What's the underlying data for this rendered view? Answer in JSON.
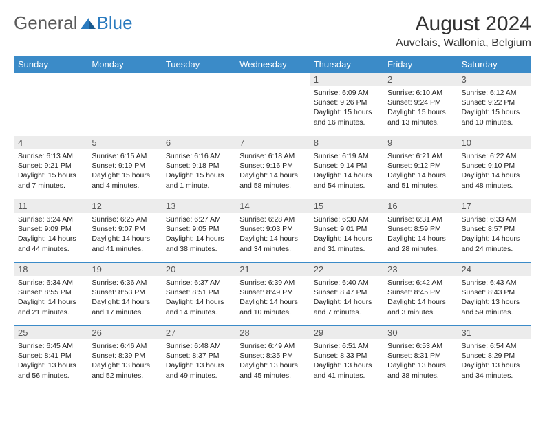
{
  "logo": {
    "text1": "General",
    "text2": "Blue"
  },
  "title": "August 2024",
  "location": "Auvelais, Wallonia, Belgium",
  "colors": {
    "header_bg": "#3b8bc8",
    "header_text": "#ffffff",
    "daynum_bg": "#ececec",
    "brand_gray": "#5a5a5a",
    "brand_blue": "#2b7bbf"
  },
  "weekdays": [
    "Sunday",
    "Monday",
    "Tuesday",
    "Wednesday",
    "Thursday",
    "Friday",
    "Saturday"
  ],
  "weeks": [
    [
      {
        "n": "",
        "sr": "",
        "ss": "",
        "dl": ""
      },
      {
        "n": "",
        "sr": "",
        "ss": "",
        "dl": ""
      },
      {
        "n": "",
        "sr": "",
        "ss": "",
        "dl": ""
      },
      {
        "n": "",
        "sr": "",
        "ss": "",
        "dl": ""
      },
      {
        "n": "1",
        "sr": "Sunrise: 6:09 AM",
        "ss": "Sunset: 9:26 PM",
        "dl": "Daylight: 15 hours and 16 minutes."
      },
      {
        "n": "2",
        "sr": "Sunrise: 6:10 AM",
        "ss": "Sunset: 9:24 PM",
        "dl": "Daylight: 15 hours and 13 minutes."
      },
      {
        "n": "3",
        "sr": "Sunrise: 6:12 AM",
        "ss": "Sunset: 9:22 PM",
        "dl": "Daylight: 15 hours and 10 minutes."
      }
    ],
    [
      {
        "n": "4",
        "sr": "Sunrise: 6:13 AM",
        "ss": "Sunset: 9:21 PM",
        "dl": "Daylight: 15 hours and 7 minutes."
      },
      {
        "n": "5",
        "sr": "Sunrise: 6:15 AM",
        "ss": "Sunset: 9:19 PM",
        "dl": "Daylight: 15 hours and 4 minutes."
      },
      {
        "n": "6",
        "sr": "Sunrise: 6:16 AM",
        "ss": "Sunset: 9:18 PM",
        "dl": "Daylight: 15 hours and 1 minute."
      },
      {
        "n": "7",
        "sr": "Sunrise: 6:18 AM",
        "ss": "Sunset: 9:16 PM",
        "dl": "Daylight: 14 hours and 58 minutes."
      },
      {
        "n": "8",
        "sr": "Sunrise: 6:19 AM",
        "ss": "Sunset: 9:14 PM",
        "dl": "Daylight: 14 hours and 54 minutes."
      },
      {
        "n": "9",
        "sr": "Sunrise: 6:21 AM",
        "ss": "Sunset: 9:12 PM",
        "dl": "Daylight: 14 hours and 51 minutes."
      },
      {
        "n": "10",
        "sr": "Sunrise: 6:22 AM",
        "ss": "Sunset: 9:10 PM",
        "dl": "Daylight: 14 hours and 48 minutes."
      }
    ],
    [
      {
        "n": "11",
        "sr": "Sunrise: 6:24 AM",
        "ss": "Sunset: 9:09 PM",
        "dl": "Daylight: 14 hours and 44 minutes."
      },
      {
        "n": "12",
        "sr": "Sunrise: 6:25 AM",
        "ss": "Sunset: 9:07 PM",
        "dl": "Daylight: 14 hours and 41 minutes."
      },
      {
        "n": "13",
        "sr": "Sunrise: 6:27 AM",
        "ss": "Sunset: 9:05 PM",
        "dl": "Daylight: 14 hours and 38 minutes."
      },
      {
        "n": "14",
        "sr": "Sunrise: 6:28 AM",
        "ss": "Sunset: 9:03 PM",
        "dl": "Daylight: 14 hours and 34 minutes."
      },
      {
        "n": "15",
        "sr": "Sunrise: 6:30 AM",
        "ss": "Sunset: 9:01 PM",
        "dl": "Daylight: 14 hours and 31 minutes."
      },
      {
        "n": "16",
        "sr": "Sunrise: 6:31 AM",
        "ss": "Sunset: 8:59 PM",
        "dl": "Daylight: 14 hours and 28 minutes."
      },
      {
        "n": "17",
        "sr": "Sunrise: 6:33 AM",
        "ss": "Sunset: 8:57 PM",
        "dl": "Daylight: 14 hours and 24 minutes."
      }
    ],
    [
      {
        "n": "18",
        "sr": "Sunrise: 6:34 AM",
        "ss": "Sunset: 8:55 PM",
        "dl": "Daylight: 14 hours and 21 minutes."
      },
      {
        "n": "19",
        "sr": "Sunrise: 6:36 AM",
        "ss": "Sunset: 8:53 PM",
        "dl": "Daylight: 14 hours and 17 minutes."
      },
      {
        "n": "20",
        "sr": "Sunrise: 6:37 AM",
        "ss": "Sunset: 8:51 PM",
        "dl": "Daylight: 14 hours and 14 minutes."
      },
      {
        "n": "21",
        "sr": "Sunrise: 6:39 AM",
        "ss": "Sunset: 8:49 PM",
        "dl": "Daylight: 14 hours and 10 minutes."
      },
      {
        "n": "22",
        "sr": "Sunrise: 6:40 AM",
        "ss": "Sunset: 8:47 PM",
        "dl": "Daylight: 14 hours and 7 minutes."
      },
      {
        "n": "23",
        "sr": "Sunrise: 6:42 AM",
        "ss": "Sunset: 8:45 PM",
        "dl": "Daylight: 14 hours and 3 minutes."
      },
      {
        "n": "24",
        "sr": "Sunrise: 6:43 AM",
        "ss": "Sunset: 8:43 PM",
        "dl": "Daylight: 13 hours and 59 minutes."
      }
    ],
    [
      {
        "n": "25",
        "sr": "Sunrise: 6:45 AM",
        "ss": "Sunset: 8:41 PM",
        "dl": "Daylight: 13 hours and 56 minutes."
      },
      {
        "n": "26",
        "sr": "Sunrise: 6:46 AM",
        "ss": "Sunset: 8:39 PM",
        "dl": "Daylight: 13 hours and 52 minutes."
      },
      {
        "n": "27",
        "sr": "Sunrise: 6:48 AM",
        "ss": "Sunset: 8:37 PM",
        "dl": "Daylight: 13 hours and 49 minutes."
      },
      {
        "n": "28",
        "sr": "Sunrise: 6:49 AM",
        "ss": "Sunset: 8:35 PM",
        "dl": "Daylight: 13 hours and 45 minutes."
      },
      {
        "n": "29",
        "sr": "Sunrise: 6:51 AM",
        "ss": "Sunset: 8:33 PM",
        "dl": "Daylight: 13 hours and 41 minutes."
      },
      {
        "n": "30",
        "sr": "Sunrise: 6:53 AM",
        "ss": "Sunset: 8:31 PM",
        "dl": "Daylight: 13 hours and 38 minutes."
      },
      {
        "n": "31",
        "sr": "Sunrise: 6:54 AM",
        "ss": "Sunset: 8:29 PM",
        "dl": "Daylight: 13 hours and 34 minutes."
      }
    ]
  ]
}
